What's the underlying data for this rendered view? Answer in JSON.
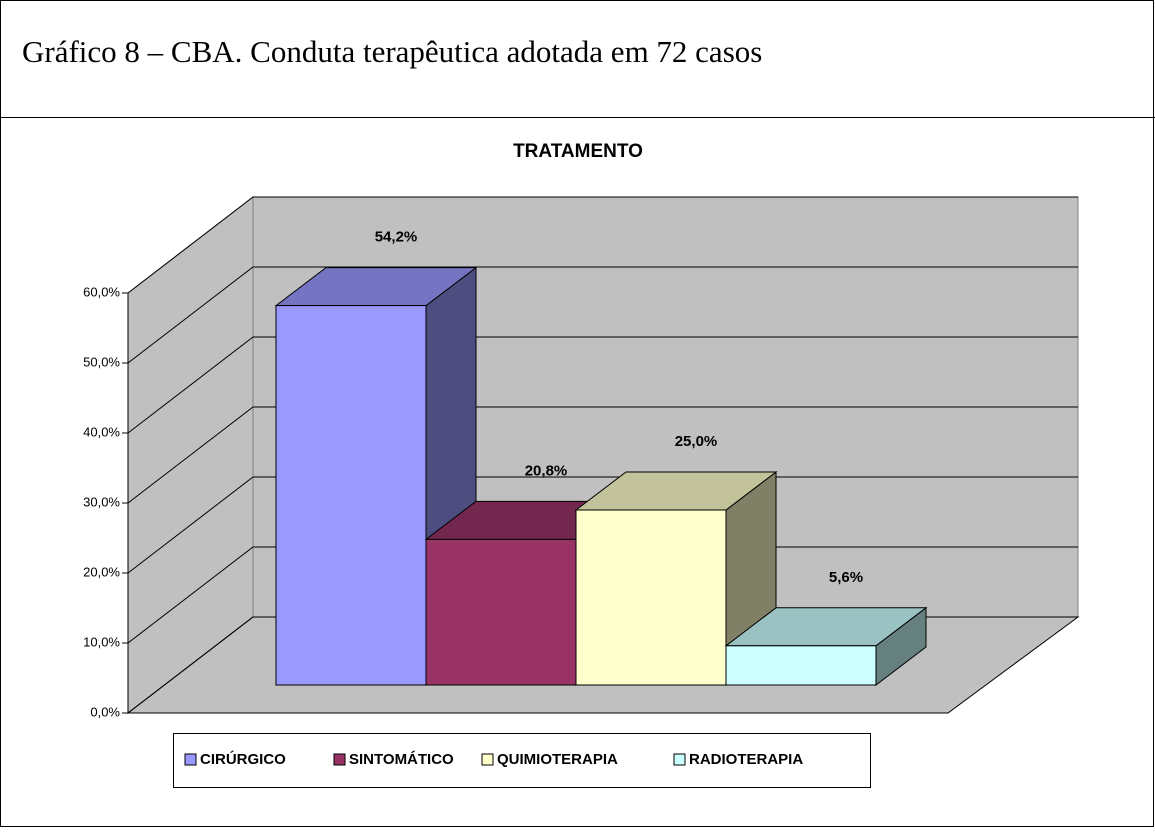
{
  "caption": "Gráfico 8 – CBA. Conduta terapêutica adotada em 72 casos",
  "chart_data": {
    "type": "bar3d",
    "title": "TRATAMENTO",
    "categories": [
      null
    ],
    "series": [
      {
        "name": "CIRÚRGICO",
        "color": "#9999ff",
        "values": [
          54.2
        ],
        "value_labels": [
          "54,2%"
        ]
      },
      {
        "name": "SINTOMÁTICO",
        "color": "#993366",
        "values": [
          20.8
        ],
        "value_labels": [
          "20,8%"
        ]
      },
      {
        "name": "QUIMIOTERAPIA",
        "color": "#ffffcc",
        "values": [
          25.0
        ],
        "value_labels": [
          "25,0%"
        ]
      },
      {
        "name": "RADIOTERAPIA",
        "color": "#ccffff",
        "values": [
          5.6
        ],
        "value_labels": [
          "5,6%"
        ]
      }
    ],
    "ylim": [
      0,
      60
    ],
    "yticks": [
      {
        "value": 0,
        "label": "0,0%"
      },
      {
        "value": 10,
        "label": "10,0%"
      },
      {
        "value": 20,
        "label": "20,0%"
      },
      {
        "value": 30,
        "label": "30,0%"
      },
      {
        "value": 40,
        "label": "40,0%"
      },
      {
        "value": 50,
        "label": "50,0%"
      },
      {
        "value": 60,
        "label": "60,0%"
      }
    ],
    "grid": true,
    "legend": "bottom"
  }
}
